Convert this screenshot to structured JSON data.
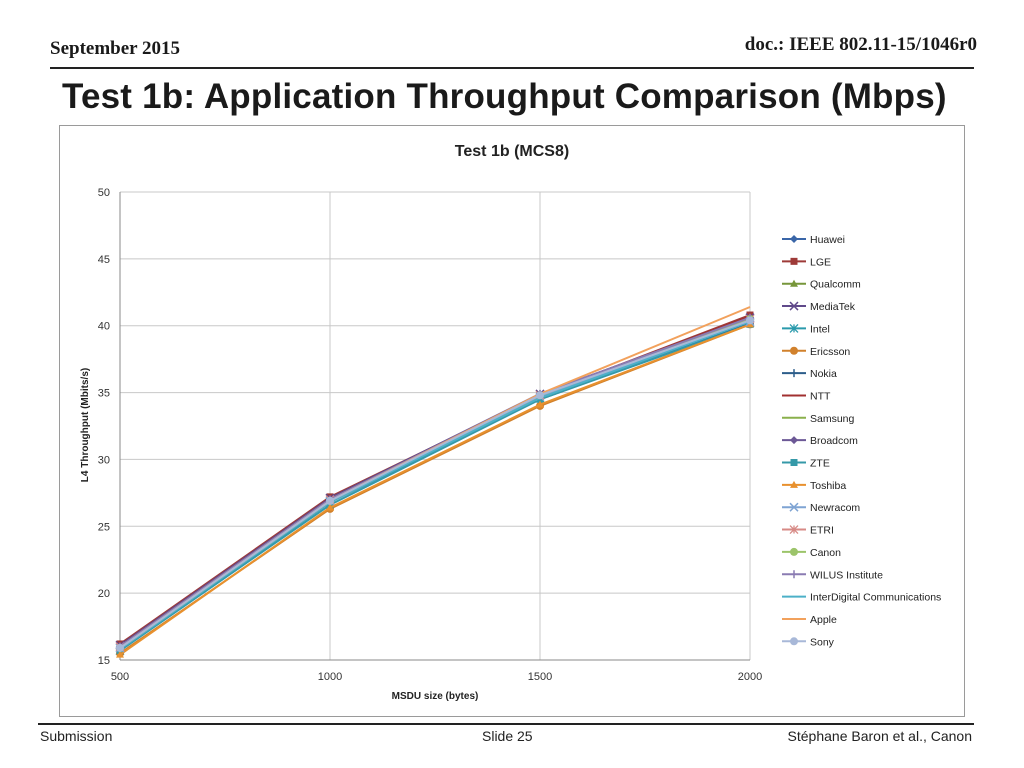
{
  "header": {
    "date": "September 2015",
    "doc": "doc.: IEEE 802.11-15/1046r0"
  },
  "slide": {
    "title": "Test 1b: Application Throughput Comparison (Mbps)"
  },
  "footer": {
    "left": "Submission",
    "center": "Slide 25",
    "right": "Stéphane Baron et al., Canon"
  },
  "chart_data": {
    "type": "line",
    "title": "Test 1b (MCS8)",
    "xlabel": "MSDU size (bytes)",
    "ylabel": "L4 Throughput (Mbits/s)",
    "x": [
      500,
      1000,
      1500,
      2000
    ],
    "xlim": [
      500,
      2000
    ],
    "ylim": [
      15,
      50
    ],
    "yticks": [
      "15",
      "20",
      "25",
      "30",
      "35",
      "40",
      "45",
      "50"
    ],
    "xticks": [
      "500",
      "1000",
      "1500",
      "2000"
    ],
    "grid": true,
    "legend_position": "right",
    "series": [
      {
        "name": "Huawei",
        "color": "#3a66a8",
        "marker": "diamond",
        "values": [
          15.8,
          26.9,
          34.6,
          40.3
        ]
      },
      {
        "name": "LGE",
        "color": "#9e3a38",
        "marker": "square",
        "values": [
          16.2,
          27.2,
          34.8,
          40.8
        ]
      },
      {
        "name": "Qualcomm",
        "color": "#77963a",
        "marker": "triangle",
        "values": [
          15.9,
          27.0,
          34.8,
          40.5
        ]
      },
      {
        "name": "MediaTek",
        "color": "#60498a",
        "marker": "x",
        "values": [
          16.1,
          27.1,
          34.9,
          40.6
        ]
      },
      {
        "name": "Intel",
        "color": "#2a9aac",
        "marker": "star",
        "values": [
          15.7,
          26.8,
          34.6,
          40.2
        ]
      },
      {
        "name": "Ericsson",
        "color": "#d1812c",
        "marker": "circle",
        "values": [
          15.5,
          26.3,
          34.0,
          40.1
        ]
      },
      {
        "name": "Nokia",
        "color": "#2c5d8a",
        "marker": "plus",
        "values": [
          15.8,
          26.8,
          34.5,
          40.2
        ]
      },
      {
        "name": "NTT",
        "color": "#a13030",
        "marker": "none",
        "values": [
          16.0,
          27.0,
          34.8,
          40.7
        ]
      },
      {
        "name": "Samsung",
        "color": "#8ab04c",
        "marker": "none",
        "values": [
          15.9,
          26.9,
          34.8,
          40.6
        ]
      },
      {
        "name": "Broadcom",
        "color": "#6c5896",
        "marker": "diamond",
        "values": [
          16.0,
          27.0,
          34.9,
          40.6
        ]
      },
      {
        "name": "ZTE",
        "color": "#3599a8",
        "marker": "square",
        "values": [
          15.7,
          26.6,
          34.5,
          40.1
        ]
      },
      {
        "name": "Toshiba",
        "color": "#e8912e",
        "marker": "triangle",
        "values": [
          15.4,
          26.4,
          34.1,
          40.1
        ]
      },
      {
        "name": "Newracom",
        "color": "#7fa4d3",
        "marker": "x",
        "values": [
          15.9,
          26.9,
          34.7,
          40.3
        ]
      },
      {
        "name": "ETRI",
        "color": "#d78a86",
        "marker": "star",
        "values": [
          16.0,
          27.0,
          34.8,
          40.5
        ]
      },
      {
        "name": "Canon",
        "color": "#9cc46a",
        "marker": "circle",
        "values": [
          15.9,
          26.9,
          34.8,
          40.5
        ]
      },
      {
        "name": "WILUS Institute",
        "color": "#8a7bb2",
        "marker": "plus",
        "values": [
          16.0,
          27.0,
          34.9,
          40.6
        ]
      },
      {
        "name": "InterDigital Communications",
        "color": "#4cb0c8",
        "marker": "none",
        "values": [
          15.8,
          26.8,
          34.6,
          40.3
        ]
      },
      {
        "name": "Apple",
        "color": "#f2a15c",
        "marker": "none",
        "values": [
          15.9,
          26.9,
          34.9,
          41.4
        ]
      },
      {
        "name": "Sony",
        "color": "#a8b8d8",
        "marker": "circle",
        "values": [
          15.9,
          26.9,
          34.8,
          40.4
        ]
      }
    ]
  }
}
